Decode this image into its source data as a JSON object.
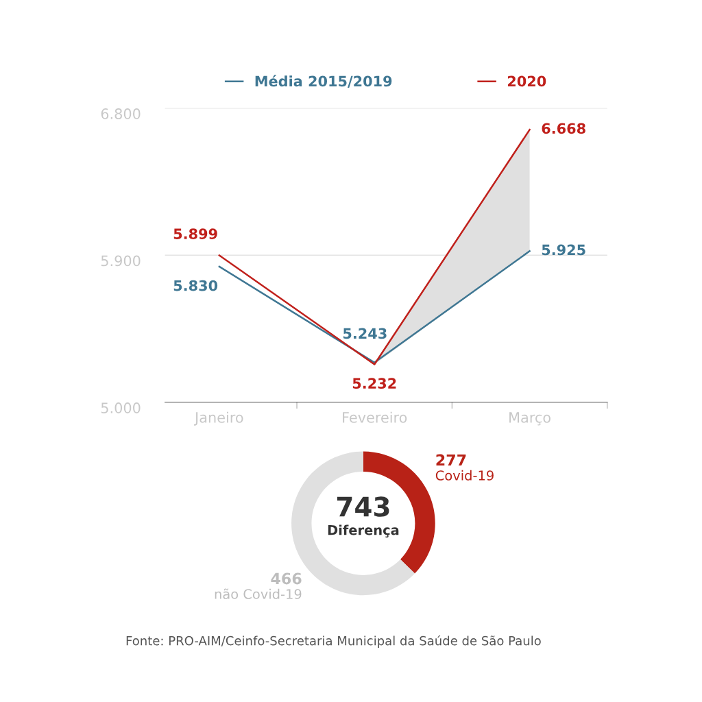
{
  "chart_data": [
    {
      "type": "line",
      "categories": [
        "Janeiro",
        "Fevereiro",
        "Março"
      ],
      "series": [
        {
          "name": "Média 2015/2019",
          "color": "#3f7793",
          "values": [
            5830,
            5243,
            5925
          ],
          "value_labels": [
            "5.830",
            "5.243",
            "5.925"
          ]
        },
        {
          "name": "2020",
          "color": "#c0201b",
          "values": [
            5899,
            5232,
            6668
          ],
          "value_labels": [
            "5.899",
            "5.232",
            "6.668"
          ],
          "lower": [
            null,
            5232,
            5925
          ],
          "upper": [
            null,
            5243,
            6668
          ]
        }
      ],
      "ylim": [
        5000,
        6800
      ],
      "yticks": [
        {
          "value": 5000,
          "label": "5.000"
        },
        {
          "value": 5900,
          "label": "5.900"
        },
        {
          "value": 6800,
          "label": "6.800"
        }
      ],
      "grid": "y",
      "legend": "top",
      "marker": "none",
      "line_style": "solid"
    },
    {
      "type": "donut",
      "categories": [
        "Covid-19",
        "não Covid-19"
      ],
      "values": [
        277,
        466
      ],
      "colors": [
        "#b82217",
        "#e0e0e0"
      ],
      "value_labels": [
        "277",
        "466"
      ],
      "annotations": [
        "743",
        "Diferença",
        "Fonte: PRO-AIM/Ceinfo-Secretaria Municipal da Saúde de São Paulo"
      ]
    }
  ]
}
